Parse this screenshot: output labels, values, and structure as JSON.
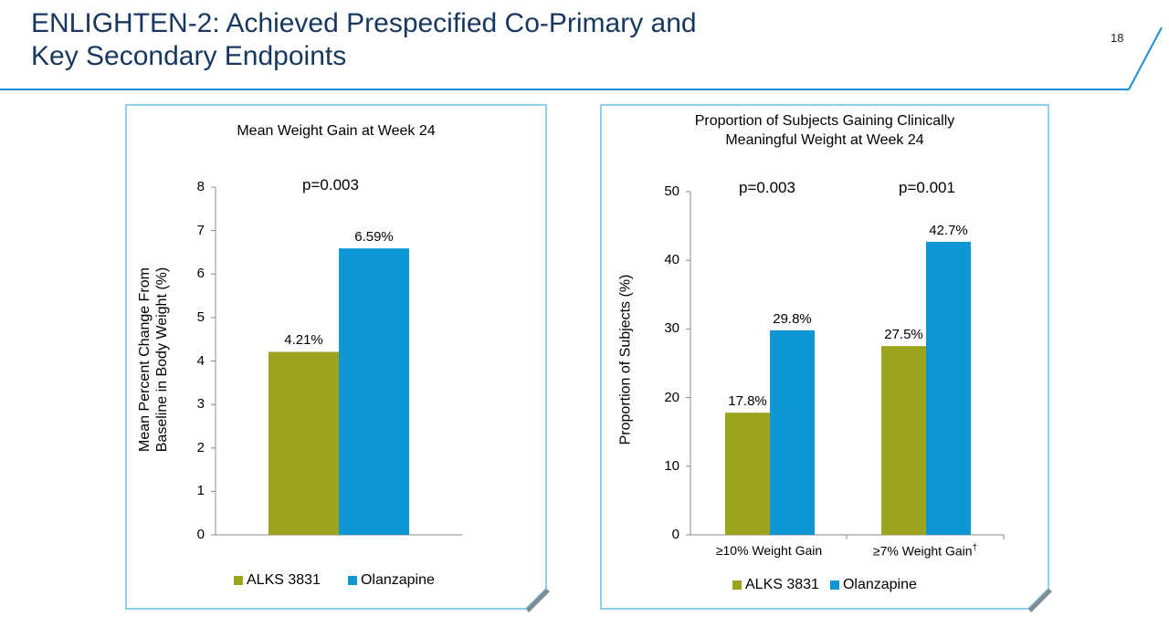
{
  "slide": {
    "title_line1": "ENLIGHTEN-2: Achieved Prespecified Co-Primary and",
    "title_line2": "Key Secondary Endpoints",
    "page_number": "18"
  },
  "colors": {
    "alks": "#9ca41e",
    "olanzapine": "#0e95d4",
    "frame": "#8fd0ee",
    "title": "#17375e"
  },
  "chart_data": [
    {
      "type": "bar",
      "title": "Mean Weight Gain at Week 24",
      "ylabel_line1": "Mean Percent Change From",
      "ylabel_line2": "Baseline in Body Weight (%)",
      "xlabel": "",
      "ylim": [
        0,
        8
      ],
      "yticks": [
        "0",
        "1",
        "2",
        "3",
        "4",
        "5",
        "6",
        "7",
        "8"
      ],
      "categories": [
        ""
      ],
      "series": [
        {
          "name": "ALKS 3831",
          "values": [
            4.21
          ],
          "labels": [
            "4.21%"
          ]
        },
        {
          "name": "Olanzapine",
          "values": [
            6.59
          ],
          "labels": [
            "6.59%"
          ]
        }
      ],
      "annotations": [
        "p=0.003"
      ],
      "legend": "bottom",
      "grid": false
    },
    {
      "type": "bar",
      "title_line1": "Proportion of Subjects Gaining Clinically",
      "title_line2": "Meaningful Weight at Week 24",
      "ylabel": "Proportion of Subjects (%)",
      "xlabel": "",
      "ylim": [
        0,
        50
      ],
      "yticks": [
        "0",
        "10",
        "20",
        "30",
        "40",
        "50"
      ],
      "categories": [
        "≥10% Weight Gain",
        "≥7% Weight Gain"
      ],
      "category_footnote": "†",
      "series": [
        {
          "name": "ALKS 3831",
          "values": [
            17.8,
            27.5
          ],
          "labels": [
            "17.8%",
            "27.5%"
          ]
        },
        {
          "name": "Olanzapine",
          "values": [
            29.8,
            42.7
          ],
          "labels": [
            "29.8%",
            "42.7%"
          ]
        }
      ],
      "annotations": [
        "p=0.003",
        "p=0.001"
      ],
      "legend": "bottom",
      "grid": false
    }
  ]
}
